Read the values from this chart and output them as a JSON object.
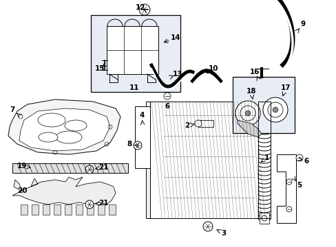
{
  "bg_color": "#ffffff",
  "fig_width": 4.89,
  "fig_height": 3.6,
  "dpi": 100,
  "line_color": "#000000",
  "fill_light": "#e8edf5",
  "fill_gray": "#d8d8d8",
  "fill_white": "#ffffff"
}
